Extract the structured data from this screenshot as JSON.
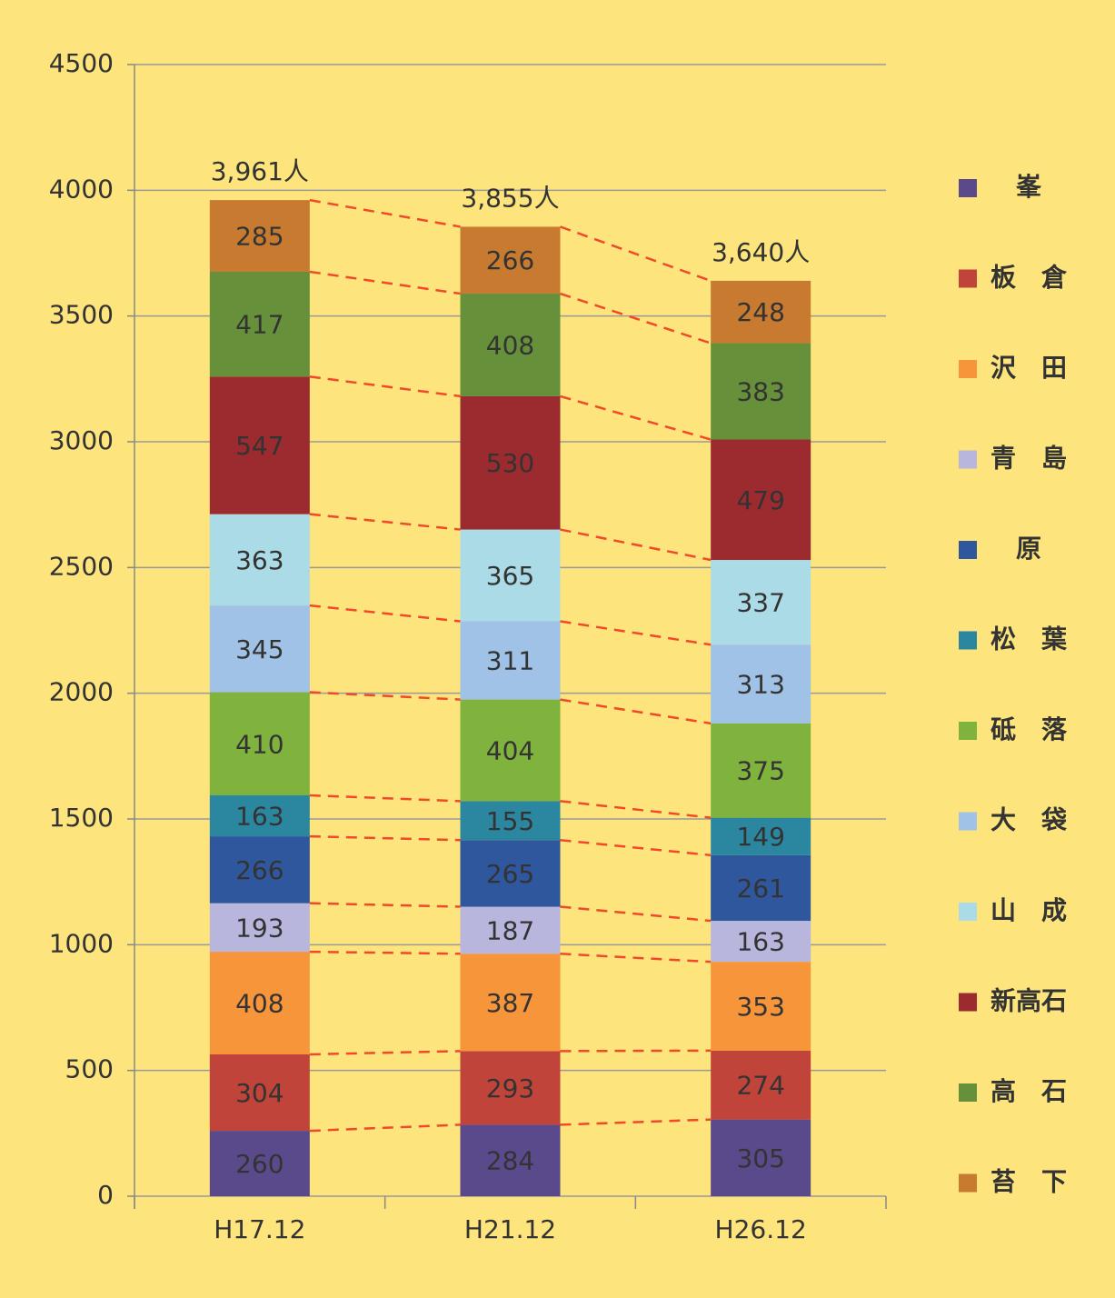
{
  "chart_data": {
    "type": "stacked_bar",
    "categories": [
      "H17.12",
      "H21.12",
      "H26.12"
    ],
    "series": [
      {
        "name": "峯",
        "color": "#5a4a8c",
        "values": [
          260,
          284,
          305
        ]
      },
      {
        "name": "板　倉",
        "color": "#c1443a",
        "values": [
          304,
          293,
          274
        ]
      },
      {
        "name": "沢　田",
        "color": "#f7953a",
        "values": [
          408,
          387,
          353
        ]
      },
      {
        "name": "青　島",
        "color": "#b8b6dc",
        "values": [
          193,
          187,
          163
        ]
      },
      {
        "name": "原",
        "color": "#2f579e",
        "values": [
          266,
          265,
          261
        ]
      },
      {
        "name": "松　葉",
        "color": "#2b87a0",
        "values": [
          163,
          155,
          149
        ]
      },
      {
        "name": "砥　落",
        "color": "#80b23e",
        "values": [
          410,
          404,
          375
        ]
      },
      {
        "name": "大　袋",
        "color": "#a0c2e6",
        "values": [
          345,
          311,
          313
        ]
      },
      {
        "name": "山　成",
        "color": "#aadbe6",
        "values": [
          363,
          365,
          337
        ]
      },
      {
        "name": "新高石",
        "color": "#9b2b2e",
        "values": [
          547,
          530,
          479
        ]
      },
      {
        "name": "高　石",
        "color": "#66913a",
        "values": [
          417,
          408,
          383
        ]
      },
      {
        "name": "苔　下",
        "color": "#c77a30",
        "values": [
          285,
          266,
          248
        ]
      }
    ],
    "totals": [
      3961,
      3855,
      3640
    ],
    "total_labels": [
      "3,961人",
      "3,855人",
      "3,640人"
    ],
    "ylim": [
      0,
      4500
    ],
    "yticks": [
      0,
      500,
      1000,
      1500,
      2000,
      2500,
      3000,
      3500,
      4000,
      4500
    ],
    "grid": true,
    "connector_color": "#f04a2a"
  }
}
